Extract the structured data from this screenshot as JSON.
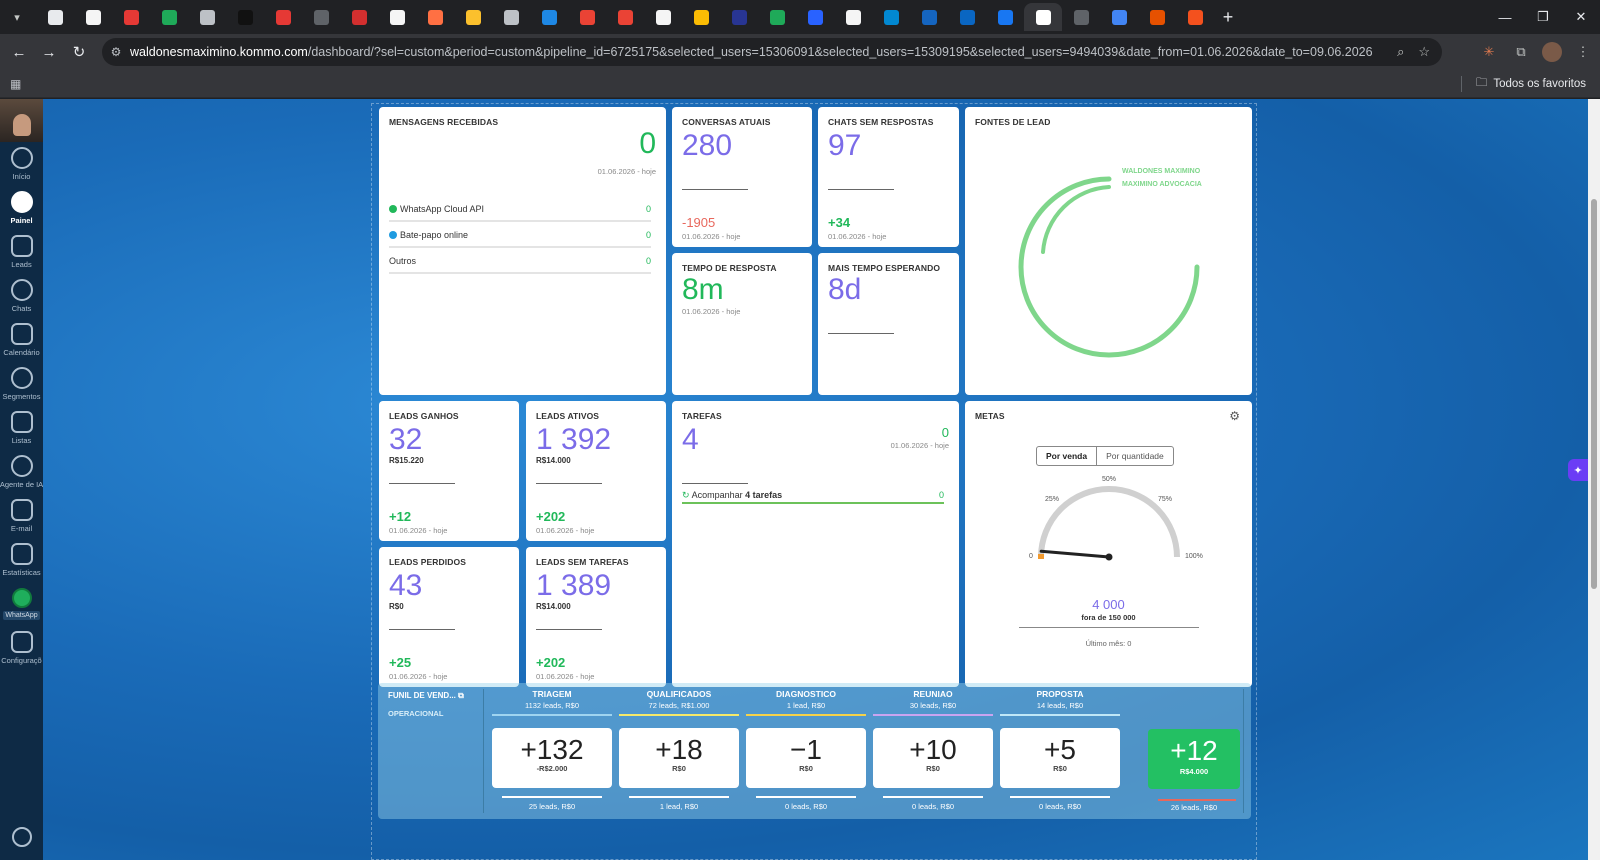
{
  "browser": {
    "url_host": "waldonesmaximino.kommo.com",
    "url_path": "/dashboard/?sel=custom&period=custom&pipeline_id=6725175&selected_users=15306091&selected_users=15309195&selected_users=9494039&date_from=01.06.2026&date_to=09.06.2026",
    "bookmarks_folder": "Todos os favoritos",
    "tab_favicon_colors": [
      "#e8eaed",
      "#f5f5f5",
      "#e53935",
      "#1faa59",
      "#bdc1c6",
      "#111111",
      "#e53935",
      "#5f6368",
      "#d32f2f",
      "#f5f5f5",
      "#ff7043",
      "#fbc02d",
      "#bdc1c6",
      "#1e88e5",
      "#ea4335",
      "#ea4335",
      "#f5f5f5",
      "#fbbc04",
      "#283593",
      "#1faa59",
      "#2962ff",
      "#f5f5f5",
      "#0288d1",
      "#1565c0",
      "#0a66c2",
      "#1877f2",
      "#ffffff",
      "#5f6368",
      "#4285f4",
      "#e65100",
      "#f4511e"
    ]
  },
  "sidebar": {
    "items": [
      {
        "label": "Início",
        "icon": "home-icon"
      },
      {
        "label": "Painel",
        "icon": "dashboard-icon"
      },
      {
        "label": "Leads",
        "icon": "dollar-icon"
      },
      {
        "label": "Chats",
        "icon": "chat-icon"
      },
      {
        "label": "Calendário",
        "icon": "check-icon"
      },
      {
        "label": "Segmentos",
        "icon": "segments-icon"
      },
      {
        "label": "Listas",
        "icon": "list-icon"
      },
      {
        "label": "Agente de IA",
        "icon": "ai-agent-icon"
      },
      {
        "label": "E-mail",
        "icon": "mail-icon"
      },
      {
        "label": "Estatísticas",
        "icon": "stats-icon"
      },
      {
        "label": "WhatsApp",
        "icon": "whatsapp-icon"
      },
      {
        "label": "Configuraçõ",
        "icon": "settings-icon"
      }
    ]
  },
  "widgets": {
    "mensagens": {
      "title": "MENSAGENS RECEBIDAS",
      "value": "0",
      "date": "01.06.2026 - hoje",
      "rows": [
        {
          "label": "WhatsApp Cloud API",
          "value": "0",
          "color": "#21b85a"
        },
        {
          "label": "Bate-papo online",
          "value": "0",
          "color": "#1f9be0"
        },
        {
          "label": "Outros",
          "value": "0",
          "color": ""
        }
      ]
    },
    "conversas": {
      "title": "CONVERSAS ATUAIS",
      "value": "280",
      "delta": "-1905",
      "date": "01.06.2026 - hoje"
    },
    "chats_sem": {
      "title": "CHATS SEM RESPOSTAS",
      "value": "97",
      "delta": "+34",
      "date": "01.06.2026 - hoje"
    },
    "tempo": {
      "title": "TEMPO DE RESPOSTA",
      "value": "8m",
      "date": "01.06.2026 - hoje"
    },
    "mais_tempo": {
      "title": "MAIS TEMPO ESPERANDO",
      "value": "8d"
    },
    "fontes": {
      "title": "FONTES DE LEAD",
      "sources": [
        "WALDONES MAXIMINO",
        "MAXIMINO ADVOCACIA"
      ],
      "color": "#7fd68b"
    },
    "ganhos": {
      "title": "LEADS GANHOS",
      "value": "32",
      "money": "R$15.220",
      "delta": "+12",
      "date": "01.06.2026 - hoje"
    },
    "ativos": {
      "title": "LEADS ATIVOS",
      "value": "1 392",
      "money": "R$14.000",
      "delta": "+202",
      "date": "01.06.2026 - hoje"
    },
    "perdidos": {
      "title": "LEADS PERDIDOS",
      "value": "43",
      "money": "R$0",
      "delta": "+25",
      "date": "01.06.2026 - hoje"
    },
    "sem_tarefas": {
      "title": "LEADS SEM TAREFAS",
      "value": "1 389",
      "money": "R$14.000",
      "delta": "+202",
      "date": "01.06.2026 - hoje"
    },
    "tarefas": {
      "title": "TAREFAS",
      "value": "4",
      "right_value": "0",
      "date": "01.06.2026 - hoje",
      "row_label_pre": "Acompanhar",
      "row_label_bold": "4 tarefas",
      "row_value": "0"
    },
    "metas": {
      "title": "METAS",
      "tab_active": "Por venda",
      "tab_other": "Por quantidade",
      "ticks": [
        "0",
        "25%",
        "50%",
        "75%",
        "100%"
      ],
      "progress": 0.027,
      "value": "4 000",
      "of_label": "fora de 150 000",
      "last_month": "Último mês: 0"
    }
  },
  "funnel": {
    "title": "FUNIL DE VEND...",
    "subtitle": "OPERACIONAL",
    "stages": [
      {
        "name": "TRIAGEM",
        "meta": "1132 leads, R$0",
        "color": "#9fd4f0",
        "value": "+132",
        "money": "-R$2.000",
        "footer": "25 leads, R$0"
      },
      {
        "name": "QUALIFICADOS",
        "meta": "72 leads, R$1.000",
        "color": "#f5e96a",
        "value": "+18",
        "money": "R$0",
        "footer": "1 lead, R$0"
      },
      {
        "name": "DIAGNOSTICO",
        "meta": "1 lead, R$0",
        "color": "#f5d24a",
        "value": "−1",
        "money": "R$0",
        "footer": "0 leads, R$0"
      },
      {
        "name": "REUNIAO",
        "meta": "30 leads, R$0",
        "color": "#c9a4f0",
        "value": "+10",
        "money": "R$0",
        "footer": "0 leads, R$0"
      },
      {
        "name": "PROPOSTA",
        "meta": "14 leads, R$0",
        "color": "#bfe7f7",
        "value": "+5",
        "money": "R$0",
        "footer": "0 leads, R$0"
      }
    ],
    "won": {
      "value": "+12",
      "money": "R$4.000",
      "footer": "26 leads, R$0"
    }
  }
}
